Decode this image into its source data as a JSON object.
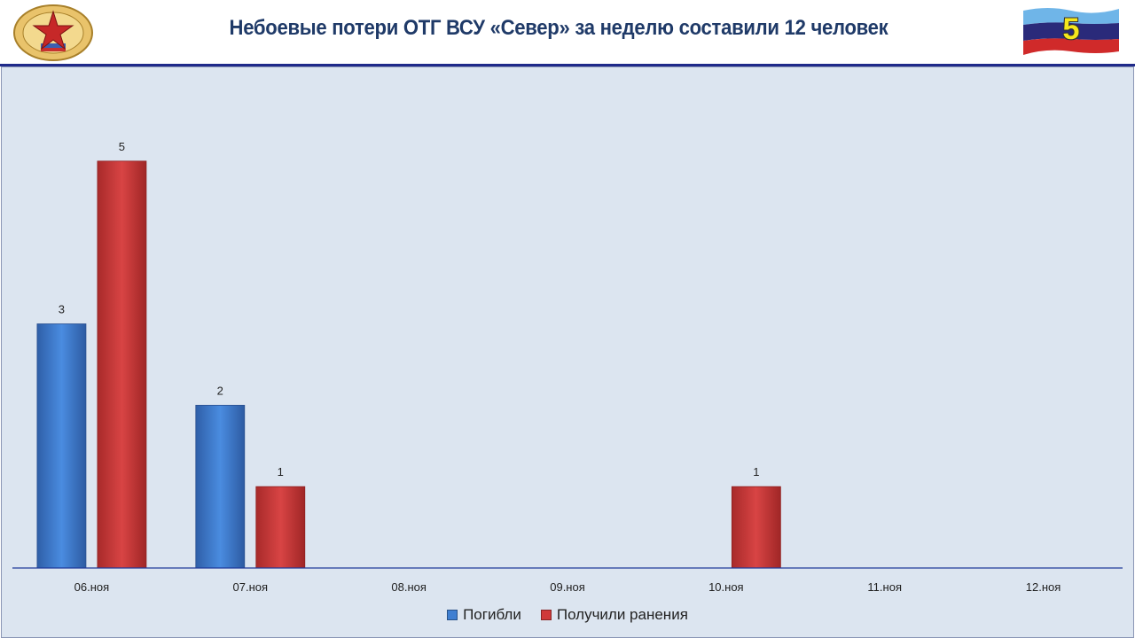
{
  "header": {
    "title": "Небоевые потери ОТГ ВСУ «Север» за неделю составили 12 человек",
    "slide_number": "5"
  },
  "colors": {
    "series_killed": "#3f7fd1",
    "series_wounded": "#cf3a3a",
    "title": "#1f3a68",
    "panel": "#dce5f0",
    "rule": "#1f2a8a"
  },
  "chart_data": {
    "type": "bar",
    "title": "",
    "xlabel": "",
    "ylabel": "",
    "categories": [
      "06.ноя",
      "07.ноя",
      "08.ноя",
      "09.ноя",
      "10.ноя",
      "11.ноя",
      "12.ноя"
    ],
    "series": [
      {
        "name": "Погибли",
        "values": [
          3,
          2,
          null,
          null,
          null,
          null,
          null
        ]
      },
      {
        "name": "Получили ранения",
        "values": [
          5,
          1,
          null,
          null,
          1,
          null,
          null
        ]
      }
    ],
    "ylim": [
      0,
      6
    ],
    "grid": false,
    "legend": "bottom",
    "data_labels": true
  }
}
